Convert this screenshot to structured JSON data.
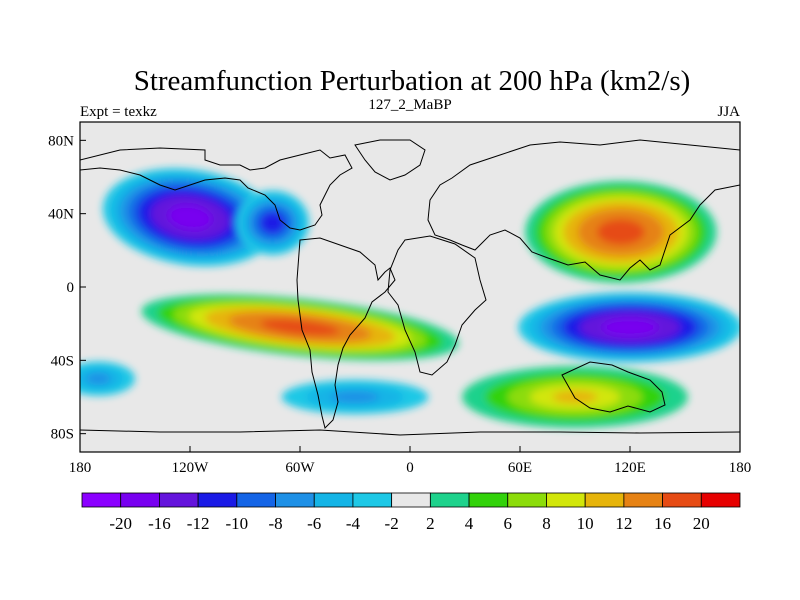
{
  "chart_data": {
    "type": "heatmap",
    "title": "Streamfunction Perturbation at 200 hPa (km2/s)",
    "left_label": "Expt = texkz",
    "center_label": "127_2_MaBP",
    "right_label": "JJA",
    "x_ticks": [
      "180",
      "120W",
      "60W",
      "0",
      "60E",
      "120E",
      "180"
    ],
    "y_ticks": [
      "80N",
      "40N",
      "0",
      "40S",
      "80S"
    ],
    "xlim": [
      -180,
      180
    ],
    "ylim": [
      -90,
      90
    ],
    "colorbar": {
      "labels": [
        "-20",
        "-16",
        "-12",
        "-10",
        "-8",
        "-6",
        "-4",
        "-2",
        "2",
        "4",
        "6",
        "8",
        "10",
        "12",
        "16",
        "20"
      ],
      "colors": [
        "#8b00ff",
        "#7800f0",
        "#6414dc",
        "#1a1ae6",
        "#1464e6",
        "#1e90e6",
        "#14b4e6",
        "#1ec8e6",
        "#e8e8e8",
        "#1ed28c",
        "#32d20a",
        "#8cdc0a",
        "#d2e60a",
        "#e6b40a",
        "#e68214",
        "#e64b14",
        "#e60000"
      ]
    },
    "features": [
      {
        "name": "north-pacific-low",
        "sign": "negative",
        "lon": -120,
        "lat": 38,
        "peak": -20
      },
      {
        "name": "atlantic-low",
        "sign": "negative",
        "lon": -75,
        "lat": 35,
        "peak": -12
      },
      {
        "name": "asia-high",
        "sign": "positive",
        "lon": 115,
        "lat": 30,
        "peak": 20
      },
      {
        "name": "tropical-south-pacific-high",
        "sign": "positive",
        "lon": -60,
        "lat": -22,
        "peak": 20
      },
      {
        "name": "indo-pacific-low",
        "sign": "negative",
        "lon": 120,
        "lat": -22,
        "peak": -20
      },
      {
        "name": "south-indian-high",
        "sign": "positive",
        "lon": 90,
        "lat": -60,
        "peak": 10
      },
      {
        "name": "southern-ocean-low",
        "sign": "negative",
        "lon": -30,
        "lat": -60,
        "peak": -6
      },
      {
        "name": "south-pacific-low",
        "sign": "negative",
        "lon": -170,
        "lat": -50,
        "peak": -6
      }
    ]
  }
}
